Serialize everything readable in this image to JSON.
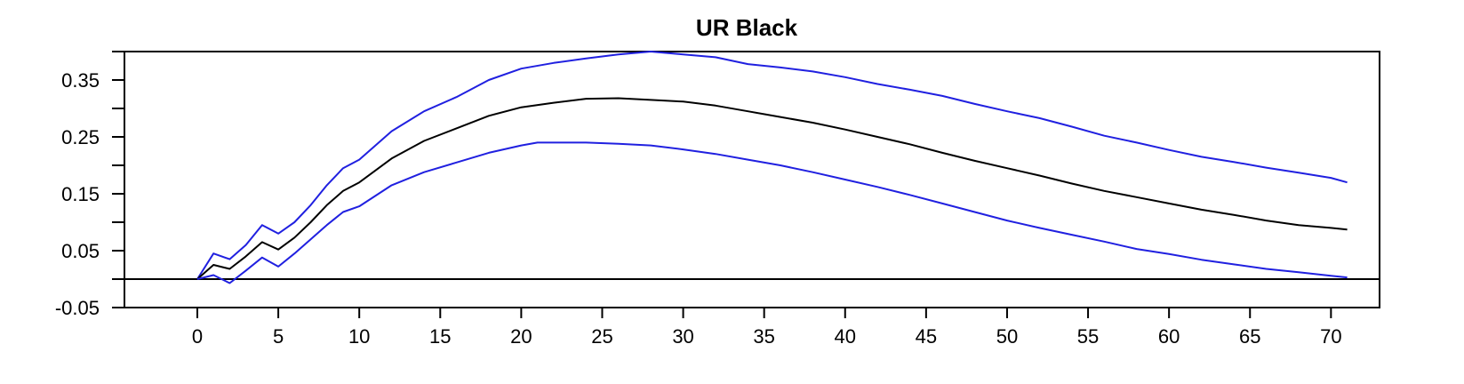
{
  "chart_data": {
    "type": "line",
    "title": "UR Black",
    "xlabel": "",
    "ylabel": "",
    "xlim": [
      -4.5,
      73
    ],
    "ylim": [
      -0.05,
      0.4
    ],
    "x_ticks": [
      0,
      5,
      10,
      15,
      20,
      25,
      30,
      35,
      40,
      45,
      50,
      55,
      60,
      65,
      70
    ],
    "x_tick_labels": [
      "0",
      "5",
      "10",
      "15",
      "20",
      "25",
      "30",
      "35",
      "40",
      "45",
      "50",
      "55",
      "60",
      "65",
      "70"
    ],
    "y_ticks": [
      0.35,
      0.25,
      0.15,
      0.05,
      -0.05
    ],
    "y_tick_labels": [
      "0.35",
      "0.25",
      "0.15",
      "0.05",
      "-0.05"
    ],
    "y_minor_ticks": [
      0.4,
      0.3,
      0.2,
      0.1,
      0.0
    ],
    "zero_line": 0,
    "grid": false,
    "legend": "none",
    "colors": {
      "mean": "#000000",
      "band": "#2020e0",
      "axis": "#000000"
    },
    "series": [
      {
        "role": "upper",
        "points": [
          [
            0,
            0.0
          ],
          [
            1,
            0.045
          ],
          [
            2,
            0.035
          ],
          [
            3,
            0.06
          ],
          [
            4,
            0.095
          ],
          [
            5,
            0.08
          ],
          [
            6,
            0.1
          ],
          [
            7,
            0.13
          ],
          [
            8,
            0.165
          ],
          [
            9,
            0.195
          ],
          [
            10,
            0.21
          ],
          [
            12,
            0.26
          ],
          [
            14,
            0.295
          ],
          [
            16,
            0.32
          ],
          [
            18,
            0.35
          ],
          [
            20,
            0.37
          ],
          [
            22,
            0.38
          ],
          [
            24,
            0.388
          ],
          [
            26,
            0.395
          ],
          [
            28,
            0.4
          ],
          [
            30,
            0.395
          ],
          [
            32,
            0.39
          ],
          [
            34,
            0.378
          ],
          [
            36,
            0.372
          ],
          [
            38,
            0.365
          ],
          [
            40,
            0.355
          ],
          [
            42,
            0.343
          ],
          [
            44,
            0.333
          ],
          [
            46,
            0.322
          ],
          [
            48,
            0.308
          ],
          [
            50,
            0.295
          ],
          [
            52,
            0.283
          ],
          [
            54,
            0.268
          ],
          [
            56,
            0.252
          ],
          [
            58,
            0.24
          ],
          [
            60,
            0.227
          ],
          [
            62,
            0.215
          ],
          [
            64,
            0.206
          ],
          [
            66,
            0.196
          ],
          [
            68,
            0.187
          ],
          [
            70,
            0.178
          ],
          [
            71,
            0.17
          ]
        ]
      },
      {
        "role": "mean",
        "points": [
          [
            0,
            0.0
          ],
          [
            1,
            0.025
          ],
          [
            2,
            0.018
          ],
          [
            3,
            0.04
          ],
          [
            4,
            0.065
          ],
          [
            5,
            0.052
          ],
          [
            6,
            0.073
          ],
          [
            7,
            0.1
          ],
          [
            8,
            0.13
          ],
          [
            9,
            0.155
          ],
          [
            10,
            0.17
          ],
          [
            12,
            0.212
          ],
          [
            14,
            0.243
          ],
          [
            16,
            0.265
          ],
          [
            18,
            0.287
          ],
          [
            20,
            0.302
          ],
          [
            22,
            0.31
          ],
          [
            24,
            0.317
          ],
          [
            26,
            0.318
          ],
          [
            28,
            0.315
          ],
          [
            30,
            0.312
          ],
          [
            32,
            0.305
          ],
          [
            34,
            0.295
          ],
          [
            36,
            0.285
          ],
          [
            38,
            0.275
          ],
          [
            40,
            0.263
          ],
          [
            42,
            0.25
          ],
          [
            44,
            0.237
          ],
          [
            46,
            0.222
          ],
          [
            48,
            0.208
          ],
          [
            50,
            0.195
          ],
          [
            52,
            0.182
          ],
          [
            54,
            0.168
          ],
          [
            56,
            0.155
          ],
          [
            58,
            0.144
          ],
          [
            60,
            0.133
          ],
          [
            62,
            0.122
          ],
          [
            64,
            0.113
          ],
          [
            66,
            0.103
          ],
          [
            68,
            0.095
          ],
          [
            70,
            0.09
          ],
          [
            71,
            0.087
          ]
        ]
      },
      {
        "role": "lower",
        "points": [
          [
            0,
            0.0
          ],
          [
            1,
            0.007
          ],
          [
            2,
            -0.007
          ],
          [
            3,
            0.015
          ],
          [
            4,
            0.038
          ],
          [
            5,
            0.022
          ],
          [
            6,
            0.045
          ],
          [
            7,
            0.07
          ],
          [
            8,
            0.095
          ],
          [
            9,
            0.118
          ],
          [
            10,
            0.128
          ],
          [
            12,
            0.165
          ],
          [
            14,
            0.188
          ],
          [
            16,
            0.205
          ],
          [
            18,
            0.222
          ],
          [
            20,
            0.235
          ],
          [
            21,
            0.24
          ],
          [
            24,
            0.24
          ],
          [
            26,
            0.238
          ],
          [
            28,
            0.235
          ],
          [
            30,
            0.228
          ],
          [
            32,
            0.22
          ],
          [
            34,
            0.21
          ],
          [
            36,
            0.2
          ],
          [
            38,
            0.188
          ],
          [
            40,
            0.175
          ],
          [
            42,
            0.162
          ],
          [
            44,
            0.148
          ],
          [
            46,
            0.133
          ],
          [
            48,
            0.118
          ],
          [
            50,
            0.103
          ],
          [
            52,
            0.09
          ],
          [
            54,
            0.078
          ],
          [
            56,
            0.066
          ],
          [
            58,
            0.053
          ],
          [
            60,
            0.044
          ],
          [
            62,
            0.034
          ],
          [
            64,
            0.026
          ],
          [
            66,
            0.018
          ],
          [
            68,
            0.012
          ],
          [
            70,
            0.006
          ],
          [
            71,
            0.003
          ]
        ]
      }
    ]
  }
}
